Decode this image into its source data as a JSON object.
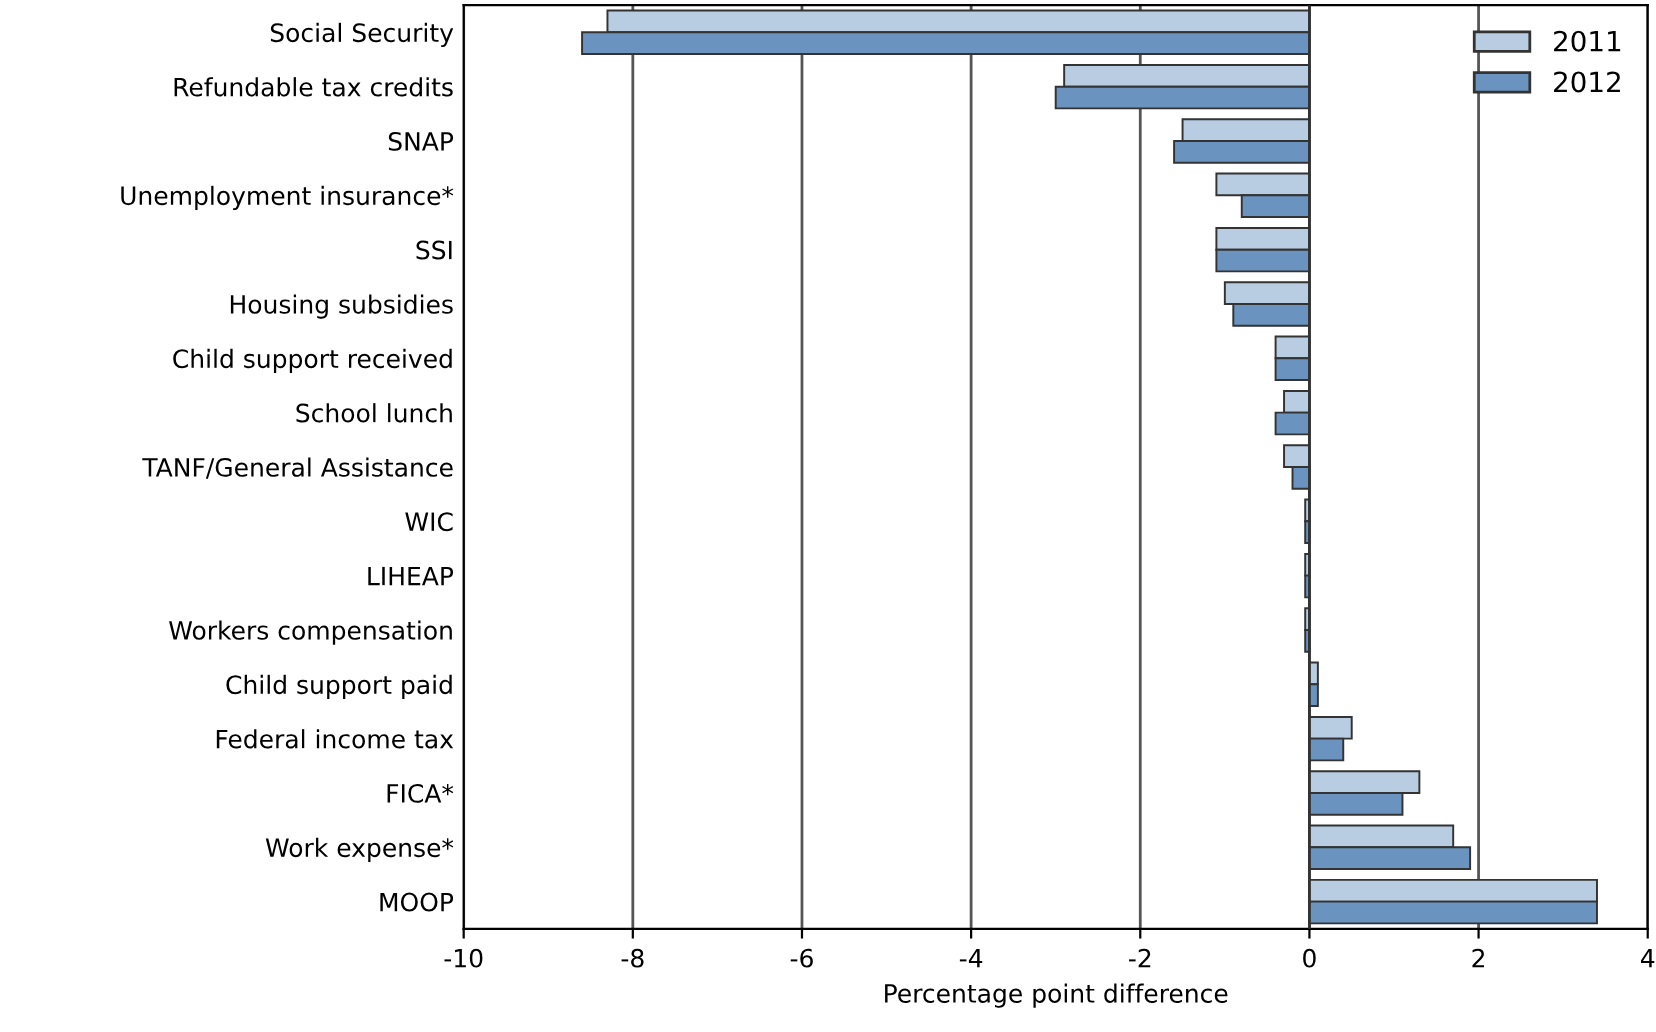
{
  "chart_data": {
    "type": "bar",
    "orientation": "horizontal",
    "xlabel": "Percentage point difference",
    "categories": [
      "Social Security",
      "Refundable tax credits",
      "SNAP",
      "Unemployment insurance*",
      "SSI",
      "Housing subsidies",
      "Child support received",
      "School lunch",
      "TANF/General Assistance",
      "WIC",
      "LIHEAP",
      "Workers compensation",
      "Child support paid",
      "Federal income tax",
      "FICA*",
      "Work expense*",
      "MOOP"
    ],
    "series": [
      {
        "name": "2011",
        "color": "#b8cce2",
        "values": [
          -8.3,
          -2.9,
          -1.5,
          -1.1,
          -1.1,
          -1.0,
          -0.4,
          -0.3,
          -0.3,
          -0.05,
          -0.05,
          -0.05,
          0.1,
          0.5,
          1.3,
          1.7,
          3.4
        ]
      },
      {
        "name": "2012",
        "color": "#6a94bf",
        "values": [
          -8.6,
          -3.0,
          -1.6,
          -0.8,
          -1.1,
          -0.9,
          -0.4,
          -0.4,
          -0.2,
          -0.05,
          -0.05,
          -0.05,
          0.1,
          0.4,
          1.1,
          1.9,
          3.4
        ]
      }
    ],
    "xlim": [
      -10,
      4
    ],
    "xticks": [
      -10,
      -8,
      -6,
      -4,
      -2,
      0,
      2,
      4
    ],
    "grid": "x",
    "legend": "top right"
  }
}
